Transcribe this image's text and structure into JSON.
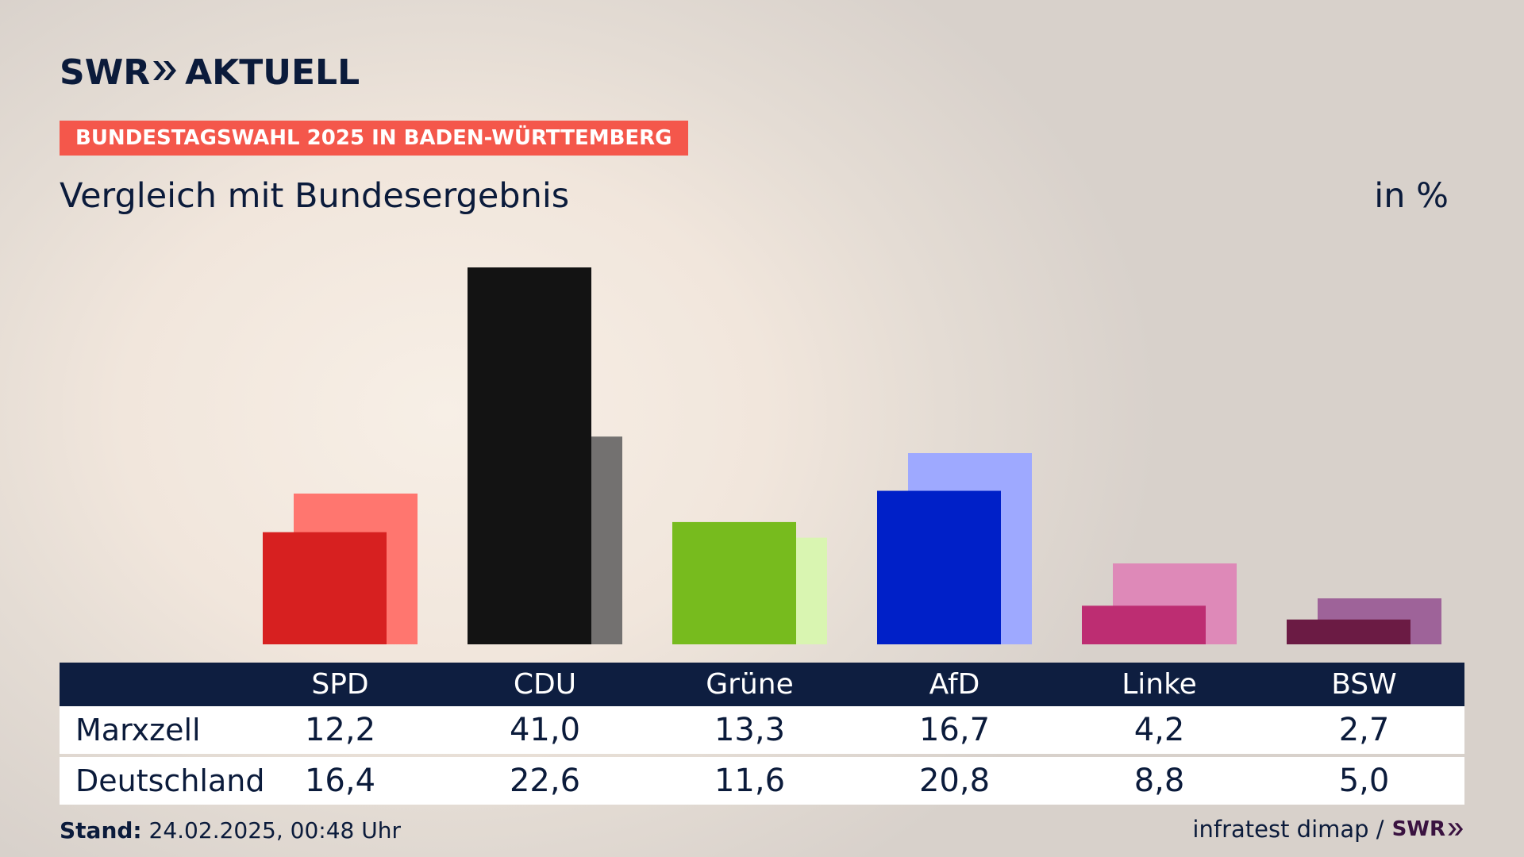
{
  "header": {
    "logo_left": "SWR",
    "logo_right": "AKTUELL",
    "tag": "BUNDESTAGSWAHL 2025 IN BADEN-WÜRTTEMBERG",
    "subtitle": "Vergleich mit Bundesergebnis",
    "unit": "in %"
  },
  "table": {
    "headers": [
      "SPD",
      "CDU",
      "Grüne",
      "AfD",
      "Linke",
      "BSW"
    ],
    "rows": [
      {
        "label": "Marxzell",
        "values": [
          "12,2",
          "41,0",
          "13,3",
          "16,7",
          "4,2",
          "2,7"
        ]
      },
      {
        "label": "Deutschland",
        "values": [
          "16,4",
          "22,6",
          "11,6",
          "20,8",
          "8,8",
          "5,0"
        ]
      }
    ]
  },
  "footer": {
    "stand_label": "Stand:",
    "stand_value": "24.02.2025, 00:48 Uhr",
    "source": "infratest dimap /",
    "source_logo": "SWR"
  },
  "chart_data": {
    "type": "bar",
    "categories": [
      "SPD",
      "CDU",
      "Grüne",
      "AfD",
      "Linke",
      "BSW"
    ],
    "series": [
      {
        "name": "Marxzell",
        "values": [
          12.2,
          41.0,
          13.3,
          16.7,
          4.2,
          2.7
        ],
        "colors": [
          "#d72020",
          "#131313",
          "#77bb1e",
          "#0020c8",
          "#bd2d72",
          "#6b1b44"
        ]
      },
      {
        "name": "Deutschland",
        "values": [
          16.4,
          22.6,
          11.6,
          20.8,
          8.8,
          5.0
        ],
        "colors": [
          "#ff766f",
          "#737170",
          "#d9f5b1",
          "#9ea9ff",
          "#de89b8",
          "#9e6399"
        ]
      }
    ],
    "ylim": [
      0,
      41.0
    ]
  }
}
